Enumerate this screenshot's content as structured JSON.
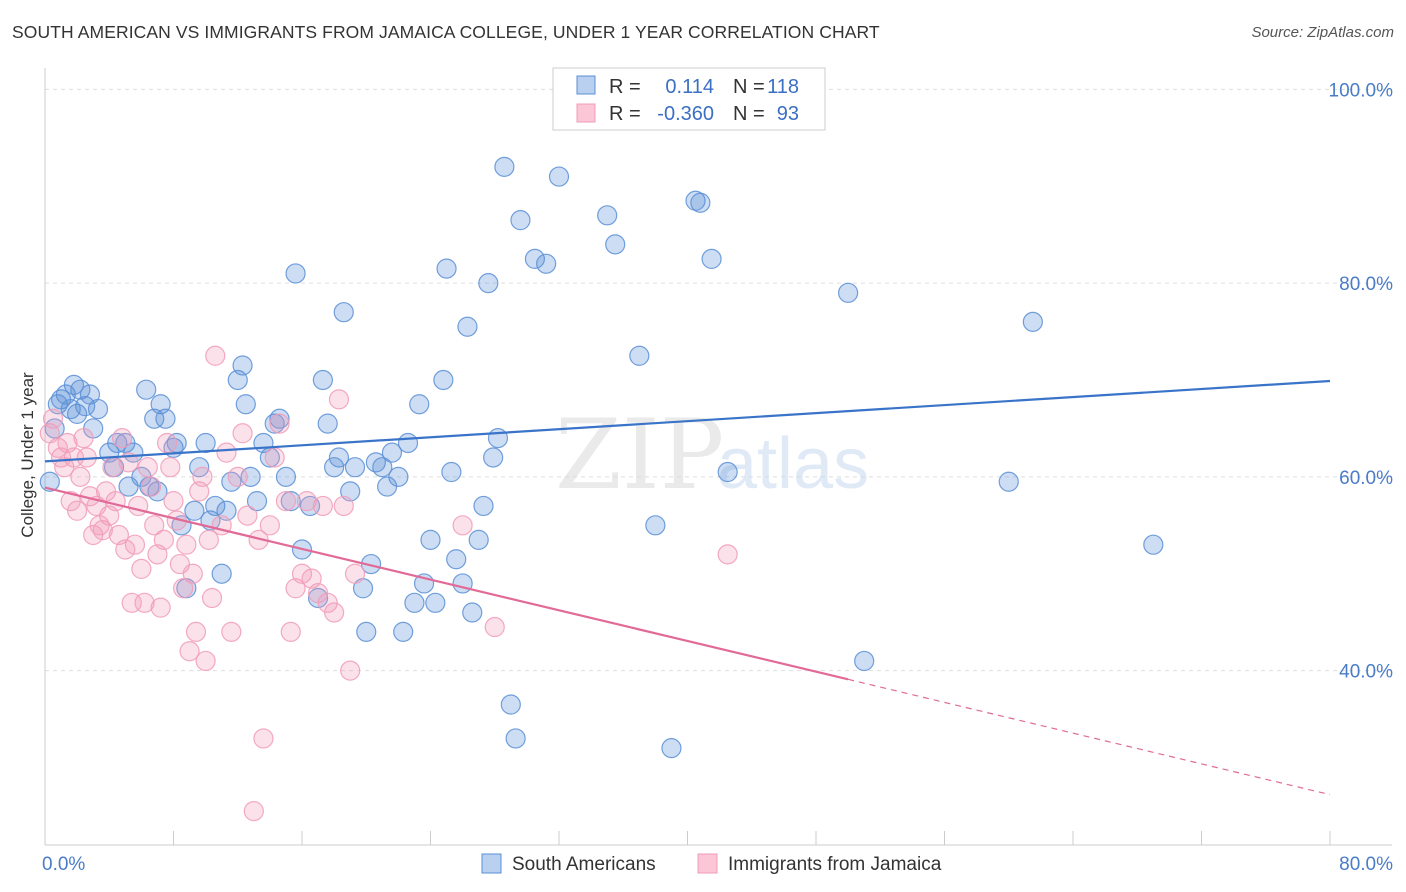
{
  "title": "SOUTH AMERICAN VS IMMIGRANTS FROM JAMAICA COLLEGE, UNDER 1 YEAR CORRELATION CHART",
  "source": "Source: ZipAtlas.com",
  "watermark": {
    "zip": "ZIP",
    "atlas": "atlas"
  },
  "colors": {
    "blue": "#5b8fd6",
    "blue_line": "#3a74c9",
    "pink": "#f19bb8",
    "pink_line": "#e26a97",
    "axis_text": "#4a7cc7"
  },
  "legend": {
    "rows": [
      {
        "r_label": "R =",
        "r_value": "0.114",
        "n_label": "N =",
        "n_value": "118"
      },
      {
        "r_label": "R =",
        "r_value": "-0.360",
        "n_label": "N =",
        "n_value": "93"
      }
    ]
  },
  "bottom_legend": [
    "South Americans",
    "Immigrants from Jamaica"
  ],
  "chart_data": {
    "type": "scatter",
    "title": "SOUTH AMERICAN VS IMMIGRANTS FROM JAMAICA COLLEGE, UNDER 1 YEAR CORRELATION CHART",
    "xlabel": "",
    "ylabel": "College, Under 1 year",
    "xlim": [
      0,
      80
    ],
    "ylim": [
      22,
      102
    ],
    "x_tick_labels": [
      "0.0%",
      "80.0%"
    ],
    "y_ticks": [
      40,
      60,
      80,
      100
    ],
    "y_tick_labels": [
      "40.0%",
      "60.0%",
      "80.0%",
      "100.0%"
    ],
    "grid": true,
    "legend_position": "top-center",
    "series": [
      {
        "name": "South Americans",
        "r": 0.114,
        "n": 118,
        "trend": {
          "x0": 0,
          "y0": 61.6,
          "x1": 80,
          "y1": 69.9
        },
        "points": [
          [
            0.3,
            59.5
          ],
          [
            0.6,
            65
          ],
          [
            0.8,
            67.5
          ],
          [
            1,
            68
          ],
          [
            1.3,
            68.5
          ],
          [
            1.6,
            67
          ],
          [
            1.8,
            69.5
          ],
          [
            2,
            66.5
          ],
          [
            2.2,
            69
          ],
          [
            2.5,
            67.3
          ],
          [
            2.8,
            68.5
          ],
          [
            3,
            65
          ],
          [
            3.3,
            67
          ],
          [
            4,
            62.5
          ],
          [
            4.3,
            61
          ],
          [
            4.5,
            63.5
          ],
          [
            5,
            63.5
          ],
          [
            5.2,
            59
          ],
          [
            5.5,
            62.5
          ],
          [
            6,
            60
          ],
          [
            6.3,
            69
          ],
          [
            6.5,
            59
          ],
          [
            6.8,
            66
          ],
          [
            7,
            58.5
          ],
          [
            7.2,
            67.5
          ],
          [
            7.5,
            66
          ],
          [
            8,
            63
          ],
          [
            8.2,
            63.5
          ],
          [
            8.5,
            55
          ],
          [
            8.8,
            48.5
          ],
          [
            9.3,
            56.5
          ],
          [
            9.6,
            61
          ],
          [
            10,
            63.5
          ],
          [
            10.3,
            55.5
          ],
          [
            10.6,
            57
          ],
          [
            11,
            50
          ],
          [
            11.3,
            56.5
          ],
          [
            11.6,
            59.5
          ],
          [
            12,
            70
          ],
          [
            12.3,
            71.5
          ],
          [
            12.5,
            67.5
          ],
          [
            12.8,
            60
          ],
          [
            13.2,
            57.5
          ],
          [
            13.6,
            63.5
          ],
          [
            14,
            62
          ],
          [
            14.3,
            65.5
          ],
          [
            14.6,
            66
          ],
          [
            15,
            60
          ],
          [
            15.3,
            57.5
          ],
          [
            15.6,
            81
          ],
          [
            16,
            52.5
          ],
          [
            16.5,
            57
          ],
          [
            17,
            47.5
          ],
          [
            17.3,
            70
          ],
          [
            17.6,
            65.5
          ],
          [
            18,
            61
          ],
          [
            18.3,
            62
          ],
          [
            18.6,
            77
          ],
          [
            19,
            58.5
          ],
          [
            19.3,
            61
          ],
          [
            19.8,
            48.5
          ],
          [
            20,
            44
          ],
          [
            20.3,
            51
          ],
          [
            20.6,
            61.5
          ],
          [
            21,
            61
          ],
          [
            21.3,
            59
          ],
          [
            21.6,
            62.5
          ],
          [
            22,
            60
          ],
          [
            22.3,
            44
          ],
          [
            22.6,
            63.5
          ],
          [
            23,
            47
          ],
          [
            23.3,
            67.5
          ],
          [
            23.6,
            49
          ],
          [
            24,
            53.5
          ],
          [
            24.3,
            47
          ],
          [
            24.8,
            70
          ],
          [
            25,
            81.5
          ],
          [
            25.3,
            60.5
          ],
          [
            25.6,
            51.5
          ],
          [
            26,
            49
          ],
          [
            26.3,
            75.5
          ],
          [
            26.6,
            46
          ],
          [
            27,
            53.5
          ],
          [
            27.3,
            57
          ],
          [
            27.6,
            80
          ],
          [
            27.9,
            62
          ],
          [
            28.2,
            64
          ],
          [
            28.6,
            92
          ],
          [
            29,
            36.5
          ],
          [
            29.3,
            33
          ],
          [
            29.6,
            86.5
          ],
          [
            30.5,
            82.5
          ],
          [
            31.2,
            82
          ],
          [
            32,
            91
          ],
          [
            35,
            87
          ],
          [
            35.5,
            84
          ],
          [
            37,
            72.5
          ],
          [
            38,
            55
          ],
          [
            39,
            32
          ],
          [
            40.5,
            88.5
          ],
          [
            40.8,
            88.3
          ],
          [
            41.5,
            82.5
          ],
          [
            42.5,
            60.5
          ],
          [
            50,
            79
          ],
          [
            51,
            41
          ],
          [
            60,
            59.5
          ],
          [
            61.5,
            76
          ],
          [
            69,
            53
          ]
        ]
      },
      {
        "name": "Immigrants from Jamaica",
        "r": -0.36,
        "n": 93,
        "trend": {
          "x0": 0,
          "y0": 58.9,
          "x1": 50,
          "y1": 39.1,
          "dash_to_x": 80,
          "dash_to_y": 27.2
        },
        "points": [
          [
            0.3,
            64.5
          ],
          [
            0.5,
            66
          ],
          [
            0.8,
            63
          ],
          [
            1,
            62
          ],
          [
            1.2,
            61
          ],
          [
            1.4,
            63.5
          ],
          [
            1.6,
            57.5
          ],
          [
            1.8,
            62
          ],
          [
            2,
            56.5
          ],
          [
            2.2,
            60
          ],
          [
            2.4,
            64
          ],
          [
            2.6,
            62
          ],
          [
            2.8,
            58
          ],
          [
            3,
            54
          ],
          [
            3.2,
            57
          ],
          [
            3.4,
            55
          ],
          [
            3.6,
            54.5
          ],
          [
            3.8,
            58.5
          ],
          [
            4,
            56
          ],
          [
            4.2,
            61
          ],
          [
            4.4,
            57.5
          ],
          [
            4.6,
            54
          ],
          [
            4.8,
            64
          ],
          [
            5,
            52.5
          ],
          [
            5.2,
            61.5
          ],
          [
            5.4,
            47
          ],
          [
            5.6,
            53
          ],
          [
            5.8,
            57
          ],
          [
            6,
            50.5
          ],
          [
            6.2,
            47
          ],
          [
            6.4,
            61
          ],
          [
            6.6,
            59
          ],
          [
            6.8,
            55
          ],
          [
            7,
            52
          ],
          [
            7.2,
            46.5
          ],
          [
            7.4,
            53.5
          ],
          [
            7.6,
            63.5
          ],
          [
            7.8,
            61
          ],
          [
            8,
            57.5
          ],
          [
            8.2,
            55.5
          ],
          [
            8.4,
            51
          ],
          [
            8.6,
            48.5
          ],
          [
            8.8,
            53
          ],
          [
            9,
            42
          ],
          [
            9.2,
            50
          ],
          [
            9.4,
            44
          ],
          [
            9.6,
            58.5
          ],
          [
            9.8,
            60
          ],
          [
            10,
            41
          ],
          [
            10.2,
            53.5
          ],
          [
            10.4,
            47.5
          ],
          [
            10.6,
            72.5
          ],
          [
            11,
            55
          ],
          [
            11.3,
            62.5
          ],
          [
            11.6,
            44
          ],
          [
            12,
            60
          ],
          [
            12.3,
            64.5
          ],
          [
            12.6,
            56
          ],
          [
            13,
            25.5
          ],
          [
            13.3,
            53.5
          ],
          [
            13.6,
            33
          ],
          [
            14,
            55
          ],
          [
            14.3,
            62
          ],
          [
            14.6,
            65.5
          ],
          [
            15,
            57.5
          ],
          [
            15.3,
            44
          ],
          [
            15.6,
            48.5
          ],
          [
            16,
            50
          ],
          [
            16.3,
            57.5
          ],
          [
            16.6,
            49.5
          ],
          [
            17,
            48
          ],
          [
            17.3,
            57
          ],
          [
            17.6,
            47
          ],
          [
            18,
            46
          ],
          [
            18.3,
            68
          ],
          [
            18.6,
            57
          ],
          [
            19,
            40
          ],
          [
            19.3,
            50
          ],
          [
            26,
            55
          ],
          [
            28,
            44.5
          ],
          [
            42.5,
            52
          ]
        ]
      }
    ]
  }
}
